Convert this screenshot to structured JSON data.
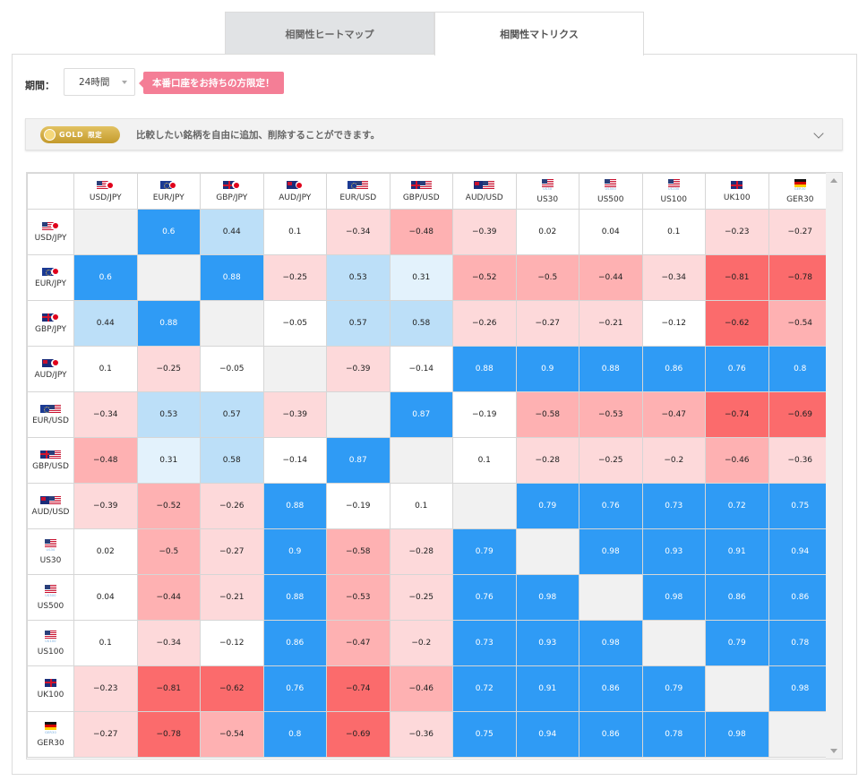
{
  "tabs": [
    {
      "label": "相関性ヒートマップ",
      "active": false
    },
    {
      "label": "相関性マトリクス",
      "active": true
    }
  ],
  "period": {
    "label": "期間：",
    "selected": "24時間"
  },
  "promo": {
    "label": "本番口座をお持ちの方限定！"
  },
  "gold_bar": {
    "badge": "GOLD",
    "badge_suffix": "限定",
    "text": "比較したい銘柄を自由に追加、削除することができます。"
  },
  "colors": {
    "tab_inactive_bg": "#e1e3e5",
    "promo_pink": "#f47e96",
    "gold": "#d4af43",
    "pos_strong": "#2f9bf5",
    "pos_mid": "#bcdff8",
    "pos_weak": "#e3f2fc",
    "neg_weak": "#fdd9da",
    "neg_mid": "#feb1b2",
    "neg_strong": "#fb6b6c",
    "diagonal": "#f1f1f1"
  },
  "matrix": {
    "instruments": [
      {
        "label": "USD/JPY",
        "flags": [
          "us",
          "jp"
        ],
        "sub": ""
      },
      {
        "label": "EUR/JPY",
        "flags": [
          "eu",
          "jp"
        ],
        "sub": ""
      },
      {
        "label": "GBP/JPY",
        "flags": [
          "gb",
          "jp"
        ],
        "sub": ""
      },
      {
        "label": "AUD/JPY",
        "flags": [
          "au",
          "jp"
        ],
        "sub": ""
      },
      {
        "label": "EUR/USD",
        "flags": [
          "eu",
          "us"
        ],
        "sub": ""
      },
      {
        "label": "GBP/USD",
        "flags": [
          "gb",
          "us"
        ],
        "sub": ""
      },
      {
        "label": "AUD/USD",
        "flags": [
          "au",
          "us"
        ],
        "sub": ""
      },
      {
        "label": "US30",
        "flags": [
          "us"
        ],
        "sub": "US30"
      },
      {
        "label": "US500",
        "flags": [
          "us"
        ],
        "sub": "US500"
      },
      {
        "label": "US100",
        "flags": [
          "us"
        ],
        "sub": "US100"
      },
      {
        "label": "UK100",
        "flags": [
          "gb"
        ],
        "sub": ""
      },
      {
        "label": "GER30",
        "flags": [
          "de"
        ],
        "sub": "GER30"
      }
    ],
    "values": [
      [
        "",
        "0.6",
        "0.44",
        "0.1",
        "−0.34",
        "−0.48",
        "−0.39",
        "0.02",
        "0.04",
        "0.1",
        "−0.23",
        "−0.27"
      ],
      [
        "0.6",
        "",
        "0.88",
        "−0.25",
        "0.53",
        "0.31",
        "−0.52",
        "−0.5",
        "−0.44",
        "−0.34",
        "−0.81",
        "−0.78"
      ],
      [
        "0.44",
        "0.88",
        "",
        "−0.05",
        "0.57",
        "0.58",
        "−0.26",
        "−0.27",
        "−0.21",
        "−0.12",
        "−0.62",
        "−0.54"
      ],
      [
        "0.1",
        "−0.25",
        "−0.05",
        "",
        "−0.39",
        "−0.14",
        "0.88",
        "0.9",
        "0.88",
        "0.86",
        "0.76",
        "0.8"
      ],
      [
        "−0.34",
        "0.53",
        "0.57",
        "−0.39",
        "",
        "0.87",
        "−0.19",
        "−0.58",
        "−0.53",
        "−0.47",
        "−0.74",
        "−0.69"
      ],
      [
        "−0.48",
        "0.31",
        "0.58",
        "−0.14",
        "0.87",
        "",
        "0.1",
        "−0.28",
        "−0.25",
        "−0.2",
        "−0.46",
        "−0.36"
      ],
      [
        "−0.39",
        "−0.52",
        "−0.26",
        "0.88",
        "−0.19",
        "0.1",
        "",
        "0.79",
        "0.76",
        "0.73",
        "0.72",
        "0.75"
      ],
      [
        "0.02",
        "−0.5",
        "−0.27",
        "0.9",
        "−0.58",
        "−0.28",
        "0.79",
        "",
        "0.98",
        "0.93",
        "0.91",
        "0.94"
      ],
      [
        "0.04",
        "−0.44",
        "−0.21",
        "0.88",
        "−0.53",
        "−0.25",
        "0.76",
        "0.98",
        "",
        "0.98",
        "0.86",
        "0.86"
      ],
      [
        "0.1",
        "−0.34",
        "−0.12",
        "0.86",
        "−0.47",
        "−0.2",
        "0.73",
        "0.93",
        "0.98",
        "",
        "0.79",
        "0.78"
      ],
      [
        "−0.23",
        "−0.81",
        "−0.62",
        "0.76",
        "−0.74",
        "−0.46",
        "0.72",
        "0.91",
        "0.86",
        "0.79",
        "",
        "0.98"
      ],
      [
        "−0.27",
        "−0.78",
        "−0.54",
        "0.8",
        "−0.69",
        "−0.36",
        "0.75",
        "0.94",
        "0.86",
        "0.78",
        "0.98",
        ""
      ]
    ]
  }
}
